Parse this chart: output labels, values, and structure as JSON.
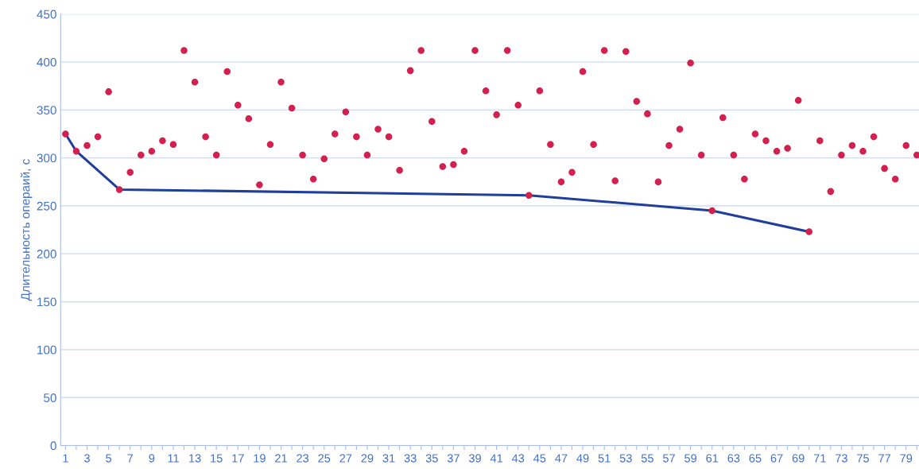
{
  "chart_data": {
    "type": "scatter",
    "ylabel": "Длительность операий, с",
    "categories": [
      "1",
      null,
      "3",
      null,
      "5",
      null,
      "7",
      null,
      "9",
      null,
      "11",
      null,
      "13",
      null,
      "15",
      null,
      "17",
      null,
      "19",
      null,
      "21",
      null,
      "23",
      null,
      "25",
      null,
      "27",
      null,
      "29",
      null,
      "31",
      null,
      "33",
      null,
      "35",
      null,
      "37",
      null,
      "39",
      null,
      "41",
      null,
      "43",
      null,
      "45",
      null,
      "47",
      null,
      "49",
      null,
      "51",
      null,
      "53",
      null,
      "55",
      null,
      "57",
      null,
      "59",
      null,
      "61",
      null,
      "63",
      null,
      "65",
      null,
      "67",
      null,
      "69",
      null,
      "71",
      null,
      "73",
      null,
      "75",
      null,
      "77",
      null,
      "79",
      null
    ],
    "series": [
      {
        "color": "#d2204f",
        "marker": "circle",
        "values": [
          325,
          307,
          313,
          322,
          369,
          267,
          285,
          303,
          307,
          318,
          314,
          412,
          379,
          322,
          303,
          390,
          355,
          341,
          272,
          314,
          379,
          352,
          303,
          278,
          299,
          325,
          348,
          322,
          303,
          330,
          322,
          287,
          391,
          412,
          338,
          291,
          293,
          307,
          412,
          370,
          345,
          412,
          355,
          261,
          370,
          314,
          275,
          285,
          390,
          314,
          412,
          276,
          411,
          359,
          346,
          275,
          313,
          330,
          399,
          303,
          245,
          342,
          303,
          278,
          325,
          318,
          307,
          310,
          360,
          223,
          318,
          265,
          303,
          313,
          307,
          322,
          289,
          278,
          313,
          303
        ]
      },
      {
        "type": "line",
        "color": "#213f9a",
        "line_style": "solid",
        "values": [
          325,
          307,
          null,
          null,
          null,
          267,
          null,
          null,
          null,
          null,
          null,
          null,
          null,
          null,
          null,
          null,
          null,
          null,
          null,
          null,
          null,
          null,
          null,
          null,
          null,
          null,
          null,
          null,
          null,
          null,
          null,
          null,
          null,
          null,
          null,
          null,
          null,
          null,
          null,
          null,
          null,
          null,
          null,
          261,
          null,
          null,
          null,
          null,
          null,
          null,
          null,
          null,
          null,
          null,
          null,
          null,
          null,
          null,
          null,
          null,
          245,
          null,
          null,
          null,
          null,
          null,
          null,
          null,
          null,
          223,
          null,
          null,
          null,
          null,
          null,
          null,
          null,
          null,
          null,
          null
        ]
      }
    ],
    "ylim": [
      0,
      450
    ],
    "yticks": [
      0,
      50,
      100,
      150,
      200,
      250,
      300,
      350,
      400,
      450
    ],
    "grid": "y",
    "legend": false
  }
}
